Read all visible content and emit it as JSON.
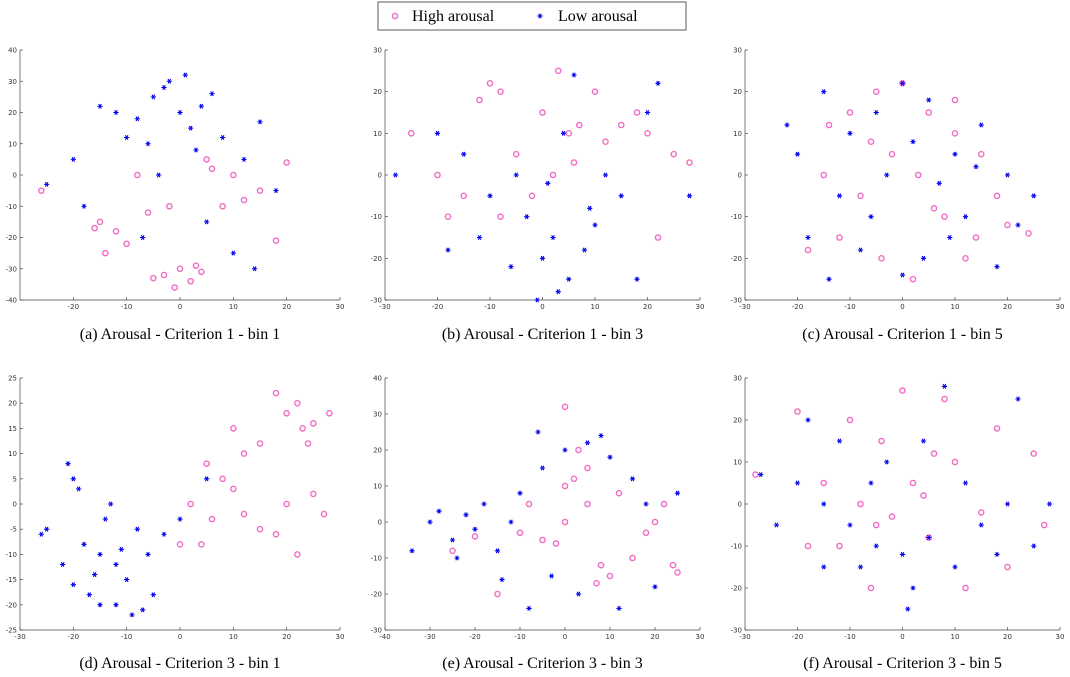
{
  "legend": [
    {
      "name": "High arousal",
      "color": "#f26bc4",
      "marker": "circle"
    },
    {
      "name": "Low arousal",
      "color": "#0000ee",
      "marker": "asterisk"
    }
  ],
  "chart_data": [
    {
      "type": "scatter",
      "caption": "(a)  Arousal - Criterion 1 - bin 1",
      "xlim": [
        -30,
        30
      ],
      "xticks": [
        -20,
        -10,
        0,
        10,
        20,
        30
      ],
      "ylim": [
        -40,
        40
      ],
      "yticks": [
        -40,
        -30,
        -20,
        -10,
        0,
        10,
        20,
        30,
        40
      ],
      "series": [
        {
          "x": [
            -3,
            0,
            2,
            4,
            -1,
            -5,
            3,
            6,
            5,
            8,
            10,
            -15,
            -12,
            -10,
            -8,
            -6,
            12,
            15,
            18,
            -2,
            -16,
            20,
            -26,
            -14
          ],
          "y": [
            -32,
            -30,
            -34,
            -31,
            -36,
            -33,
            -29,
            2,
            5,
            -10,
            0,
            -15,
            -18,
            -22,
            0,
            -12,
            -8,
            -5,
            -21,
            -10,
            -17,
            4,
            -5,
            -25
          ]
        },
        {
          "x": [
            -5,
            -2,
            0,
            2,
            4,
            -8,
            -10,
            -3,
            1,
            6,
            -12,
            -15,
            -6,
            3,
            8,
            12,
            15,
            18,
            -18,
            -20,
            -7,
            5,
            10,
            -4,
            14,
            -25
          ],
          "y": [
            25,
            30,
            20,
            15,
            22,
            18,
            12,
            28,
            32,
            26,
            20,
            22,
            10,
            8,
            12,
            5,
            17,
            -5,
            -10,
            5,
            -20,
            -15,
            -25,
            0,
            -30,
            -3
          ]
        }
      ]
    },
    {
      "type": "scatter",
      "caption": "(b)  Arousal - Criterion 1 - bin 3",
      "xlim": [
        -30,
        30
      ],
      "xticks": [
        -30,
        -20,
        -10,
        0,
        10,
        20,
        30
      ],
      "ylim": [
        -30,
        30
      ],
      "yticks": [
        -30,
        -20,
        -10,
        0,
        10,
        20,
        30
      ],
      "series": [
        {
          "x": [
            -10,
            -12,
            -8,
            0,
            3,
            5,
            7,
            -5,
            2,
            15,
            18,
            20,
            -20,
            -15,
            -25,
            10,
            12,
            -2,
            6,
            25,
            -8,
            -18,
            22,
            28
          ],
          "y": [
            22,
            18,
            20,
            15,
            25,
            10,
            12,
            5,
            0,
            12,
            15,
            10,
            0,
            -5,
            10,
            20,
            8,
            -5,
            3,
            5,
            -10,
            -10,
            -15,
            3
          ]
        },
        {
          "x": [
            0,
            2,
            5,
            -3,
            8,
            -6,
            3,
            10,
            -10,
            -15,
            -20,
            12,
            15,
            20,
            -28,
            -18,
            6,
            -1,
            4,
            22,
            -12,
            9,
            18,
            -5,
            28,
            1
          ],
          "y": [
            -20,
            -15,
            -25,
            -10,
            -18,
            -22,
            -28,
            -12,
            -5,
            5,
            10,
            0,
            -5,
            15,
            0,
            -18,
            24,
            -30,
            10,
            22,
            -15,
            -8,
            -25,
            0,
            -5,
            -2
          ]
        }
      ]
    },
    {
      "type": "scatter",
      "caption": "(c)  Arousal - Criterion 1 - bin 5",
      "xlim": [
        -30,
        30
      ],
      "xticks": [
        -30,
        -20,
        -10,
        0,
        10,
        20,
        30
      ],
      "ylim": [
        -30,
        30
      ],
      "yticks": [
        -30,
        -20,
        -10,
        0,
        10,
        20,
        30
      ],
      "series": [
        {
          "x": [
            -10,
            -5,
            0,
            5,
            10,
            15,
            -15,
            -8,
            -2,
            3,
            8,
            12,
            -12,
            -4,
            6,
            14,
            20,
            24,
            -18,
            2,
            10,
            -6,
            18,
            -14
          ],
          "y": [
            15,
            20,
            22,
            15,
            10,
            5,
            0,
            -5,
            5,
            0,
            -10,
            -20,
            -15,
            -20,
            -8,
            -15,
            -12,
            -14,
            -18,
            -25,
            18,
            8,
            -5,
            12
          ]
        },
        {
          "x": [
            -22,
            -15,
            -10,
            -5,
            0,
            5,
            10,
            15,
            20,
            25,
            -18,
            -12,
            -8,
            -3,
            2,
            7,
            12,
            18,
            -20,
            -14,
            -6,
            4,
            9,
            14,
            22,
            0
          ],
          "y": [
            12,
            20,
            10,
            15,
            22,
            18,
            5,
            12,
            0,
            -5,
            -15,
            -5,
            -18,
            0,
            8,
            -2,
            -10,
            -22,
            5,
            -25,
            -10,
            -20,
            -15,
            2,
            -12,
            -24
          ]
        }
      ]
    },
    {
      "type": "scatter",
      "caption": "(d)  Arousal - Criterion 3 - bin 1",
      "xlim": [
        -30,
        30
      ],
      "xticks": [
        -30,
        -20,
        -10,
        0,
        10,
        20,
        30
      ],
      "ylim": [
        -25,
        25
      ],
      "yticks": [
        -25,
        -20,
        -15,
        -10,
        -5,
        0,
        5,
        10,
        15,
        20,
        25
      ],
      "series": [
        {
          "x": [
            20,
            22,
            18,
            25,
            23,
            15,
            8,
            5,
            10,
            12,
            6,
            20,
            25,
            27,
            22,
            2,
            4,
            15,
            18,
            0,
            10,
            24,
            28,
            12
          ],
          "y": [
            18,
            20,
            22,
            16,
            15,
            12,
            5,
            8,
            3,
            10,
            -3,
            0,
            2,
            -2,
            -10,
            0,
            -8,
            -5,
            -6,
            -8,
            15,
            12,
            18,
            -2
          ]
        },
        {
          "x": [
            -20,
            -21,
            -19,
            -15,
            -12,
            -18,
            -10,
            -8,
            -5,
            -15,
            -22,
            -25,
            -14,
            -16,
            -11,
            -9,
            -20,
            -13,
            -6,
            -3,
            0,
            -17,
            -12,
            -7,
            -26,
            5
          ],
          "y": [
            5,
            8,
            3,
            -10,
            -12,
            -8,
            -15,
            -5,
            -18,
            -20,
            -12,
            -5,
            -3,
            -14,
            -9,
            -22,
            -16,
            0,
            -10,
            -6,
            -3,
            -18,
            -20,
            -21,
            -6,
            5
          ]
        }
      ]
    },
    {
      "type": "scatter",
      "caption": "(e)  Arousal - Criterion 3 - bin 3",
      "xlim": [
        -40,
        30
      ],
      "xticks": [
        -40,
        -30,
        -20,
        -10,
        0,
        10,
        20,
        30
      ],
      "ylim": [
        -30,
        40
      ],
      "yticks": [
        -30,
        -20,
        -10,
        0,
        10,
        20,
        30,
        40
      ],
      "series": [
        {
          "x": [
            0,
            2,
            5,
            -5,
            10,
            15,
            20,
            22,
            25,
            24,
            0,
            -2,
            8,
            12,
            -10,
            -8,
            5,
            18,
            -15,
            -25,
            7,
            0,
            -20,
            3
          ],
          "y": [
            10,
            12,
            5,
            -5,
            -15,
            -10,
            0,
            5,
            -14,
            -12,
            32,
            -6,
            -12,
            8,
            -3,
            5,
            15,
            -3,
            -20,
            -8,
            -17,
            0,
            -4,
            20
          ]
        },
        {
          "x": [
            -30,
            -25,
            -22,
            -20,
            -18,
            -15,
            -12,
            -28,
            -24,
            -10,
            -5,
            0,
            5,
            8,
            3,
            -3,
            10,
            15,
            20,
            -8,
            -14,
            18,
            25,
            -6,
            12,
            -34
          ],
          "y": [
            0,
            -5,
            2,
            -2,
            5,
            -8,
            0,
            3,
            -10,
            8,
            15,
            20,
            22,
            24,
            -20,
            -15,
            18,
            12,
            -18,
            -24,
            -16,
            5,
            8,
            25,
            -24,
            -8
          ]
        }
      ]
    },
    {
      "type": "scatter",
      "caption": "(f)  Arousal - Criterion 3 - bin 5",
      "xlim": [
        -30,
        30
      ],
      "xticks": [
        -30,
        -20,
        -10,
        0,
        10,
        20,
        30
      ],
      "ylim": [
        -30,
        30
      ],
      "yticks": [
        -30,
        -20,
        -10,
        0,
        10,
        20,
        30
      ],
      "series": [
        {
          "x": [
            -28,
            -20,
            -15,
            -10,
            -5,
            0,
            5,
            10,
            15,
            20,
            25,
            -12,
            -6,
            2,
            8,
            12,
            -18,
            -2,
            6,
            18,
            27,
            -8,
            4,
            -4
          ],
          "y": [
            7,
            22,
            5,
            20,
            -5,
            27,
            -8,
            10,
            -2,
            -15,
            12,
            -10,
            -20,
            5,
            25,
            -20,
            -10,
            -3,
            12,
            18,
            -5,
            0,
            2,
            15
          ]
        },
        {
          "x": [
            -27,
            -20,
            -15,
            -10,
            -5,
            0,
            5,
            10,
            15,
            20,
            25,
            -18,
            -12,
            -8,
            -3,
            2,
            8,
            12,
            18,
            -24,
            -6,
            4,
            22,
            28,
            1,
            -15
          ],
          "y": [
            7,
            5,
            0,
            -5,
            -10,
            -12,
            -8,
            -15,
            -5,
            0,
            -10,
            20,
            15,
            -15,
            10,
            -20,
            28,
            5,
            -12,
            -5,
            5,
            15,
            25,
            0,
            -25,
            -15
          ]
        }
      ]
    }
  ]
}
